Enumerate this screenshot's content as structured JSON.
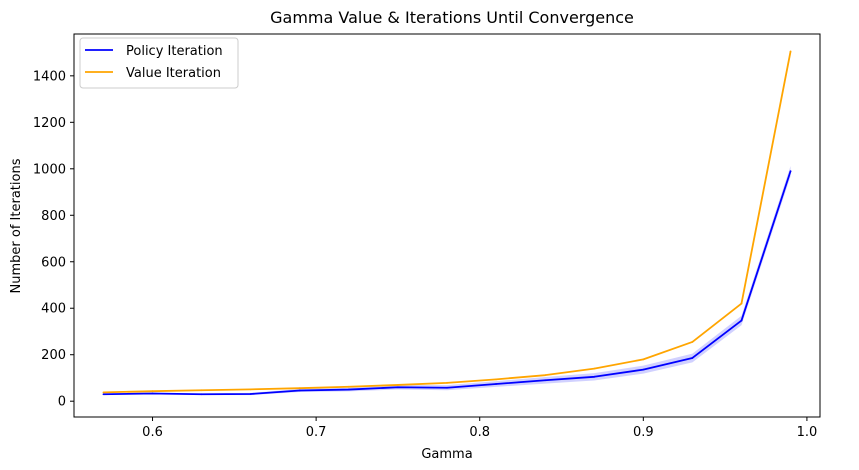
{
  "chart_data": {
    "type": "line",
    "title": "Gamma Value & Iterations Until Convergence",
    "xlabel": "Gamma",
    "ylabel": "Number of Iterations",
    "xlim": [
      0.552,
      1.008
    ],
    "ylim": [
      -68,
      1580
    ],
    "xticks": [
      0.6,
      0.7,
      0.8,
      0.9,
      1.0
    ],
    "xtick_labels": [
      "0.6",
      "0.7",
      "0.8",
      "0.9",
      "1.0"
    ],
    "yticks": [
      0,
      200,
      400,
      600,
      800,
      1000,
      1200,
      1400
    ],
    "ytick_labels": [
      "0",
      "200",
      "400",
      "600",
      "800",
      "1000",
      "1200",
      "1400"
    ],
    "grid": false,
    "legend_position": "top-left",
    "x": [
      0.57,
      0.6,
      0.63,
      0.66,
      0.69,
      0.72,
      0.75,
      0.78,
      0.81,
      0.84,
      0.87,
      0.9,
      0.93,
      0.96,
      0.99
    ],
    "series": [
      {
        "name": "Policy Iteration",
        "color": "#0000ff",
        "values": [
          30,
          33,
          30,
          31,
          46,
          50,
          60,
          58,
          74,
          90,
          105,
          136,
          186,
          347,
          990
        ],
        "band": 22
      },
      {
        "name": "Value Iteration",
        "color": "#ffa500",
        "values": [
          38,
          43,
          47,
          51,
          56,
          62,
          70,
          79,
          94,
          112,
          140,
          180,
          255,
          420,
          1505
        ],
        "band": 0
      }
    ]
  }
}
